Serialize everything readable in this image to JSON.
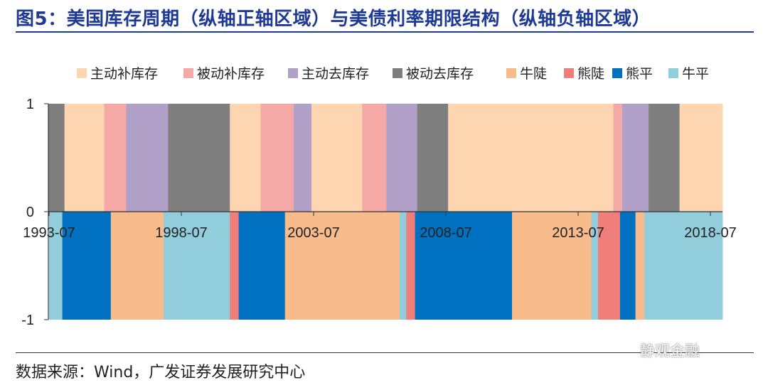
{
  "title": "图5：美国库存周期（纵轴正轴区域）与美债利率期限结构（纵轴负轴区域）",
  "source": "数据来源：Wind，广发证券发展研究中心",
  "watermark": "静观金融",
  "chart_data": {
    "type": "bar",
    "xlabel": "",
    "ylabel": "",
    "ylim": [
      -1,
      1
    ],
    "yticks": [
      "1",
      "0",
      "-1"
    ],
    "xticks": [
      "1993-07",
      "1998-07",
      "2003-07",
      "2008-07",
      "2013-07",
      "2018-07"
    ],
    "x_start": "1993-07",
    "x_end": "2018-07",
    "legend_position": "top",
    "legend": [
      {
        "name": "主动补库存",
        "color": "#fdd5b0"
      },
      {
        "name": "被动补库存",
        "color": "#f5a9a6"
      },
      {
        "name": "主动去库存",
        "color": "#b1a0c7"
      },
      {
        "name": "被动去库存",
        "color": "#7f7f7f"
      },
      {
        "name": "牛陡",
        "color": "#f8bb8c"
      },
      {
        "name": "熊陡",
        "color": "#f07f7c"
      },
      {
        "name": "熊平",
        "color": "#0070c0"
      },
      {
        "name": "牛平",
        "color": "#92cddc"
      }
    ],
    "inventory_cycle_value": 1,
    "inventory_cycle": [
      {
        "start": "1992-08",
        "end": "1994-02",
        "phase": "被动去库存"
      },
      {
        "start": "1994-02",
        "end": "1995-08",
        "phase": "主动补库存"
      },
      {
        "start": "1995-08",
        "end": "1996-06",
        "phase": "被动补库存"
      },
      {
        "start": "1996-06",
        "end": "1998-01",
        "phase": "主动去库存"
      },
      {
        "start": "1998-01",
        "end": "2000-05",
        "phase": "被动去库存"
      },
      {
        "start": "2000-05",
        "end": "2001-07",
        "phase": "主动补库存"
      },
      {
        "start": "2001-07",
        "end": "2002-10",
        "phase": "被动补库存"
      },
      {
        "start": "2002-10",
        "end": "2003-06",
        "phase": "主动去库存"
      },
      {
        "start": "2003-06",
        "end": "2005-05",
        "phase": "主动补库存"
      },
      {
        "start": "2005-05",
        "end": "2006-04",
        "phase": "被动补库存"
      },
      {
        "start": "2006-04",
        "end": "2007-06",
        "phase": "主动去库存"
      },
      {
        "start": "2007-06",
        "end": "2008-08",
        "phase": "被动去库存"
      },
      {
        "start": "2008-08",
        "end": "2014-11",
        "phase": "主动补库存"
      },
      {
        "start": "2014-11",
        "end": "2015-03",
        "phase": "被动补库存"
      },
      {
        "start": "2015-03",
        "end": "2016-03",
        "phase": "主动去库存"
      },
      {
        "start": "2016-03",
        "end": "2017-05",
        "phase": "被动去库存"
      },
      {
        "start": "2017-05",
        "end": "2019-04",
        "phase": "主动补库存"
      }
    ],
    "yield_curve_value": -1,
    "yield_curve": [
      {
        "start": "1993-07",
        "end": "1994-01",
        "phase": "牛平"
      },
      {
        "start": "1994-01",
        "end": "1995-11",
        "phase": "熊平"
      },
      {
        "start": "1995-11",
        "end": "1997-11",
        "phase": "牛陡"
      },
      {
        "start": "1997-11",
        "end": "2000-05",
        "phase": "牛平"
      },
      {
        "start": "2000-05",
        "end": "2000-09",
        "phase": "熊陡"
      },
      {
        "start": "2000-09",
        "end": "2002-06",
        "phase": "熊平"
      },
      {
        "start": "2002-06",
        "end": "2006-10",
        "phase": "牛陡"
      },
      {
        "start": "2006-10",
        "end": "2007-01",
        "phase": "牛平"
      },
      {
        "start": "2007-01",
        "end": "2007-05",
        "phase": "熊陡"
      },
      {
        "start": "2007-05",
        "end": "2011-01",
        "phase": "熊平"
      },
      {
        "start": "2011-01",
        "end": "2014-01",
        "phase": "牛陡"
      },
      {
        "start": "2014-01",
        "end": "2014-04",
        "phase": "牛平"
      },
      {
        "start": "2014-04",
        "end": "2015-02",
        "phase": "熊陡"
      },
      {
        "start": "2015-02",
        "end": "2015-09",
        "phase": "熊平"
      },
      {
        "start": "2015-09",
        "end": "2016-01",
        "phase": "牛陡"
      },
      {
        "start": "2016-01",
        "end": "2020-01",
        "phase": "牛平"
      }
    ]
  }
}
